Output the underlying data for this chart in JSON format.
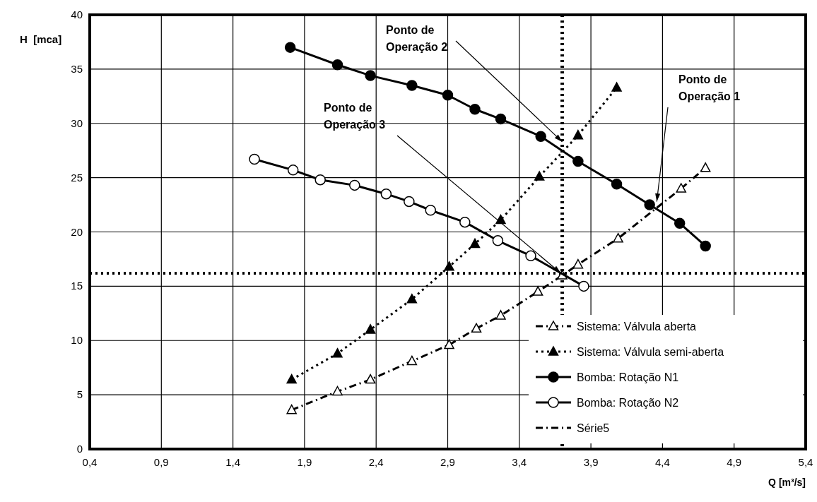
{
  "chart_data": {
    "type": "line",
    "xlabel": "Q [m³/s]",
    "ylabel": "H  [mca]",
    "xlim": [
      0.4,
      5.4
    ],
    "ylim": [
      0,
      40
    ],
    "xticks": [
      {
        "value": 0.4,
        "label": "0,4"
      },
      {
        "value": 0.9,
        "label": "0,9"
      },
      {
        "value": 1.4,
        "label": "1,4"
      },
      {
        "value": 1.9,
        "label": "1,9"
      },
      {
        "value": 2.4,
        "label": "2,4"
      },
      {
        "value": 2.9,
        "label": "2,9"
      },
      {
        "value": 3.4,
        "label": "3,4"
      },
      {
        "value": 3.9,
        "label": "3,9"
      },
      {
        "value": 4.4,
        "label": "4,4"
      },
      {
        "value": 4.9,
        "label": "4,9"
      },
      {
        "value": 5.4,
        "label": "5,4"
      }
    ],
    "yticks": [
      0,
      5,
      10,
      15,
      20,
      25,
      30,
      35,
      40
    ],
    "grid": true,
    "legend": "bottom right",
    "series": [
      {
        "name": "Sistema: Válvula aberta",
        "color": "#000000",
        "marker": "triangle",
        "colors": [
          "#ffffff",
          "#ffffff",
          "#ffffff",
          "#ffffff",
          "#ffffff",
          "#ffffff",
          "#ffffff",
          "#ffffff",
          "#ffffff",
          "#ffffff",
          "#ffffff",
          "#ffffff",
          "#ffffff"
        ],
        "line_style": "dashdot",
        "x": [
          1.81,
          2.13,
          2.36,
          2.65,
          2.91,
          3.1,
          3.27,
          3.53,
          3.7,
          3.81,
          4.09,
          4.53,
          4.7
        ],
        "values": [
          3.6,
          5.3,
          6.4,
          8.1,
          9.6,
          11.1,
          12.3,
          14.5,
          16.0,
          17.0,
          19.4,
          24.0,
          25.9
        ]
      },
      {
        "name": "Sistema: Válvula semi-aberta",
        "color": "#000000",
        "marker": "triangle",
        "line_style": "dotted",
        "x": [
          1.81,
          2.13,
          2.36,
          2.65,
          2.91,
          3.09,
          3.27,
          3.54,
          3.81,
          4.08
        ],
        "values": [
          6.4,
          8.8,
          11.0,
          13.8,
          16.8,
          18.9,
          21.1,
          25.1,
          28.9,
          33.3
        ]
      },
      {
        "name": "Bomba: Rotação N1",
        "color": "#000000",
        "marker": "circle",
        "line_style": "solid",
        "x": [
          1.8,
          2.13,
          2.36,
          2.65,
          2.9,
          3.09,
          3.27,
          3.55,
          3.81,
          4.08,
          4.31,
          4.52,
          4.7
        ],
        "values": [
          37.0,
          35.4,
          34.4,
          33.5,
          32.6,
          31.3,
          30.4,
          28.8,
          26.5,
          24.4,
          22.5,
          20.8,
          18.7
        ]
      },
      {
        "name": "Bomba: Rotação N2",
        "color": "#000000",
        "marker": "circle",
        "colors": [
          "#ffffff",
          "#ffffff",
          "#ffffff",
          "#ffffff",
          "#ffffff",
          "#ffffff",
          "#ffffff",
          "#ffffff",
          "#ffffff",
          "#ffffff",
          "#ffffff"
        ],
        "line_style": "solid",
        "x": [
          1.55,
          1.82,
          2.01,
          2.25,
          2.47,
          2.63,
          2.78,
          3.02,
          3.25,
          3.48,
          3.85
        ],
        "values": [
          26.7,
          25.7,
          24.8,
          24.3,
          23.5,
          22.8,
          22.0,
          20.9,
          19.2,
          17.8,
          15.0
        ]
      },
      {
        "name": "Série5",
        "color": "#000000",
        "marker": "none",
        "line_style": "dashdot"
      }
    ],
    "ref_lines": [
      {
        "axis": "x",
        "value": 3.7,
        "color": "#000000",
        "line_style": "dotted"
      },
      {
        "axis": "y",
        "value": 16.2,
        "color": "#000000",
        "line_style": "dotted"
      }
    ],
    "annotations": [
      {
        "text": "Ponto de Operação 1",
        "x": 4.36,
        "y": 22.8
      },
      {
        "text": "Ponto de Operação 2",
        "x": 3.7,
        "y": 28.3
      },
      {
        "text": "Ponto de Operação 3",
        "x": 3.69,
        "y": 16.2
      }
    ]
  }
}
